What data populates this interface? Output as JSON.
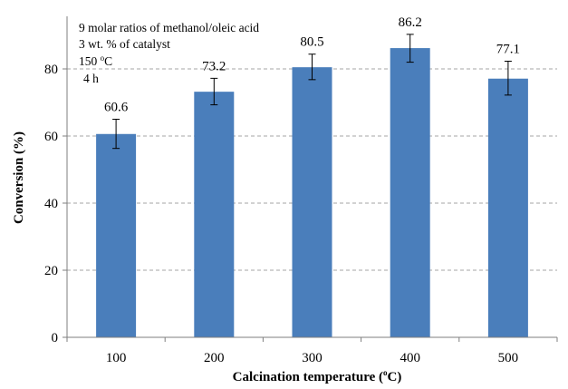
{
  "chart_data": {
    "type": "bar",
    "categories": [
      "100",
      "200",
      "300",
      "400",
      "500"
    ],
    "values": [
      60.6,
      73.2,
      80.5,
      86.2,
      77.1
    ],
    "data_labels": [
      "60.6",
      "73.2",
      "80.5",
      "86.2",
      "77.1"
    ],
    "error_bars": [
      {
        "low": 56.3,
        "high": 65.0
      },
      {
        "low": 69.3,
        "high": 77.2
      },
      {
        "low": 76.8,
        "high": 84.4
      },
      {
        "low": 82.0,
        "high": 90.3
      },
      {
        "low": 72.2,
        "high": 82.3
      }
    ],
    "ylabel": "Conversion (%)",
    "xlabel_main": "Calcination temperature (",
    "xlabel_sup": "o",
    "xlabel_end": "C)",
    "ylim": [
      0,
      100
    ],
    "yticks": [
      "0",
      "20",
      "40",
      "60",
      "80"
    ],
    "grid": "horizontal dashed",
    "bar_color": "#4a7ebb",
    "annotations": [
      "9 molar ratios of methanol/oleic acid",
      "3 wt. % of catalyst",
      "4 h"
    ],
    "annotation_temp": {
      "value": "150 ",
      "sup": "o",
      "unit": "C"
    }
  }
}
